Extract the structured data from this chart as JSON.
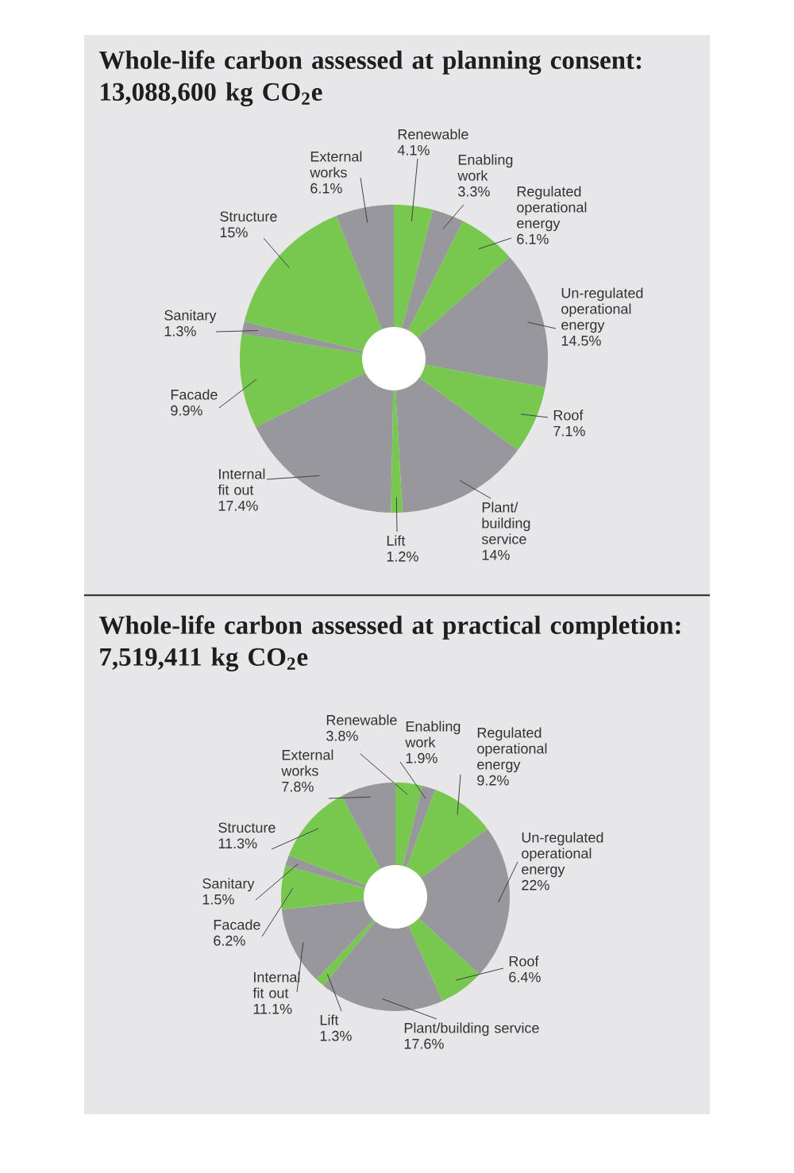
{
  "chart_data": [
    {
      "type": "donut",
      "title": "Whole-life carbon assessed at planning consent: 13,088,600 kg CO$_{2}$e",
      "categories": [
        "Renewable",
        "Enabling work",
        "Regulated operational energy",
        "Un-regulated operational energy",
        "Roof",
        "Plant/ building service",
        "Lift",
        "Internal fit out",
        "Facade",
        "Sanitary",
        "Structure",
        "External works"
      ],
      "values": [
        4.1,
        3.3,
        6.1,
        14.5,
        7.1,
        14,
        1.2,
        17.4,
        9.9,
        1.3,
        15,
        6.1
      ],
      "value_labels": [
        "4.1%",
        "3.3%",
        "6.1%",
        "14.5%",
        "7.1%",
        "14%",
        "1.2%",
        "17.4%",
        "9.9%",
        "1.3%",
        "15%",
        "6.1%"
      ],
      "colors": [
        "#78c850",
        "#98989c",
        "#78c850",
        "#98989c",
        "#78c850",
        "#98989c",
        "#78c850",
        "#98989c",
        "#78c850",
        "#98989c",
        "#78c850",
        "#98989c"
      ]
    },
    {
      "type": "donut",
      "title": "Whole-life carbon assessed at practical completion: 7,519,411 kg CO$_{2}$e",
      "categories": [
        "Renewable",
        "Enabling work",
        "Regulated operational energy",
        "Un-regulated operational energy",
        "Roof",
        "Plant/building service",
        "Lift",
        "Internal fit out",
        "Facade",
        "Sanitary",
        "Structure",
        "External works"
      ],
      "values": [
        3.8,
        1.9,
        9.2,
        22,
        6.4,
        17.6,
        1.3,
        11.1,
        6.2,
        1.5,
        11.3,
        7.8
      ],
      "value_labels": [
        "3.8%",
        "1.9%",
        "9.2%",
        "22%",
        "6.4%",
        "17.6%",
        "1.3%",
        "11.1%",
        "6.2%",
        "1.5%",
        "11.3%",
        "7.8%"
      ],
      "colors": [
        "#78c850",
        "#98989c",
        "#78c850",
        "#98989c",
        "#78c850",
        "#98989c",
        "#78c850",
        "#98989c",
        "#78c850",
        "#98989c",
        "#78c850",
        "#98989c"
      ]
    }
  ]
}
